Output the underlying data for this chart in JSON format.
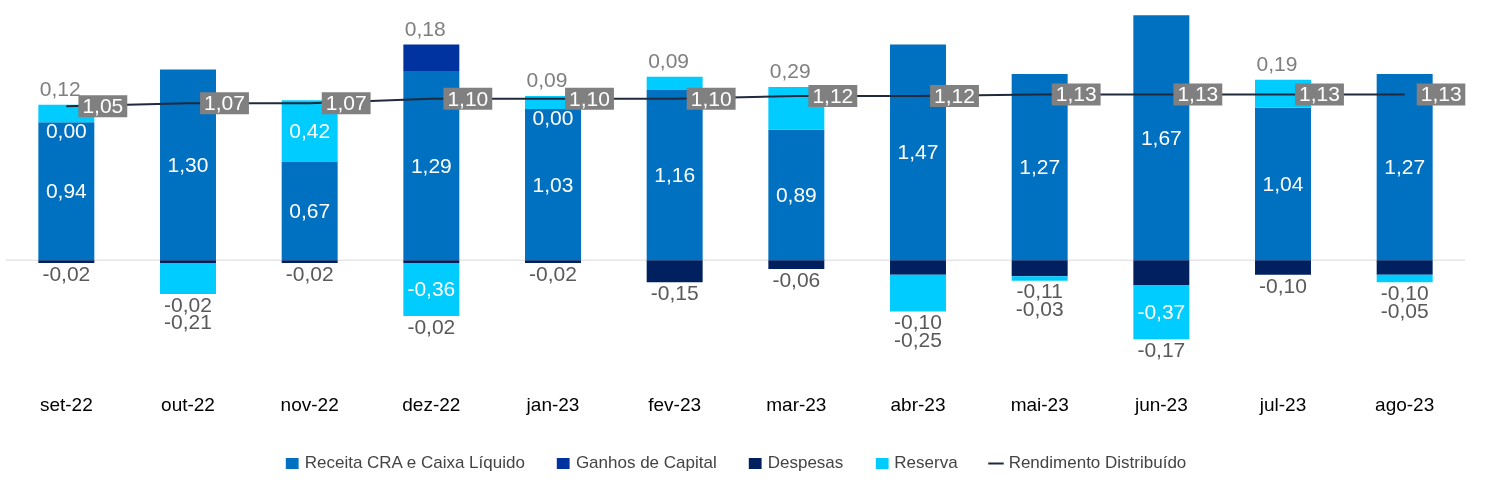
{
  "chart_data": {
    "type": "bar",
    "stacked": true,
    "legend": "bottom",
    "grid": false,
    "categories": [
      "set-22",
      "out-22",
      "nov-22",
      "dez-22",
      "jan-23",
      "fev-23",
      "mar-23",
      "abr-23",
      "mai-23",
      "jun-23",
      "jul-23",
      "ago-23"
    ],
    "series": [
      {
        "name": "Receita CRA e Caixa Líquido",
        "color": "#0070c0",
        "values": [
          0.94,
          1.3,
          0.67,
          1.29,
          1.03,
          1.16,
          0.89,
          1.47,
          1.27,
          1.67,
          1.04,
          1.27
        ],
        "value_labels": [
          "0,94",
          "1,30",
          "0,67",
          "1,29",
          "1,03",
          "1,16",
          "0,89",
          "1,47",
          "1,27",
          "1,67",
          "1,04",
          "1,27"
        ]
      },
      {
        "name": "Ganhos de Capital",
        "color": "#0033a0",
        "values": [
          0.0,
          0,
          0,
          0.18,
          0.0,
          0,
          0,
          0,
          0,
          0,
          0,
          0
        ],
        "value_labels": [
          "0,00",
          null,
          null,
          "0,18",
          "0,00",
          null,
          null,
          null,
          null,
          null,
          null,
          null
        ]
      },
      {
        "name": "Despesas",
        "color": "#002060",
        "values": [
          -0.02,
          -0.02,
          -0.02,
          -0.02,
          -0.02,
          -0.15,
          -0.06,
          -0.1,
          -0.11,
          -0.17,
          -0.1,
          -0.1
        ],
        "value_labels": [
          "-0,02",
          "-0,02",
          "-0,02",
          "-0,02",
          "-0,02",
          "-0,15",
          "-0,06",
          "-0,10",
          "-0,11",
          "-0,17",
          "-0,10",
          "-0,10"
        ]
      },
      {
        "name": "Reserva",
        "color": "#00ccff",
        "values": [
          0.12,
          -0.21,
          0.42,
          -0.36,
          0.09,
          0.09,
          0.29,
          -0.25,
          -0.03,
          -0.37,
          0.19,
          -0.05
        ],
        "value_labels": [
          "0,12",
          "-0,21",
          "0,42",
          "-0,36",
          "0,09",
          "0,09",
          "0,29",
          "-0,25",
          "-0,03",
          "-0,37",
          "0,19",
          "-0,05"
        ]
      },
      {
        "name": "Rendimento Distribuído",
        "type": "line",
        "color": "#1f2a3c",
        "values": [
          1.05,
          1.07,
          1.07,
          1.1,
          1.1,
          1.1,
          1.12,
          1.12,
          1.13,
          1.13,
          1.13,
          1.13
        ],
        "value_labels": [
          "1,05",
          "1,07",
          "1,07",
          "1,10",
          "1,10",
          "1,10",
          "1,12",
          "1,12",
          "1,13",
          "1,13",
          "1,13",
          "1,13"
        ]
      }
    ]
  }
}
